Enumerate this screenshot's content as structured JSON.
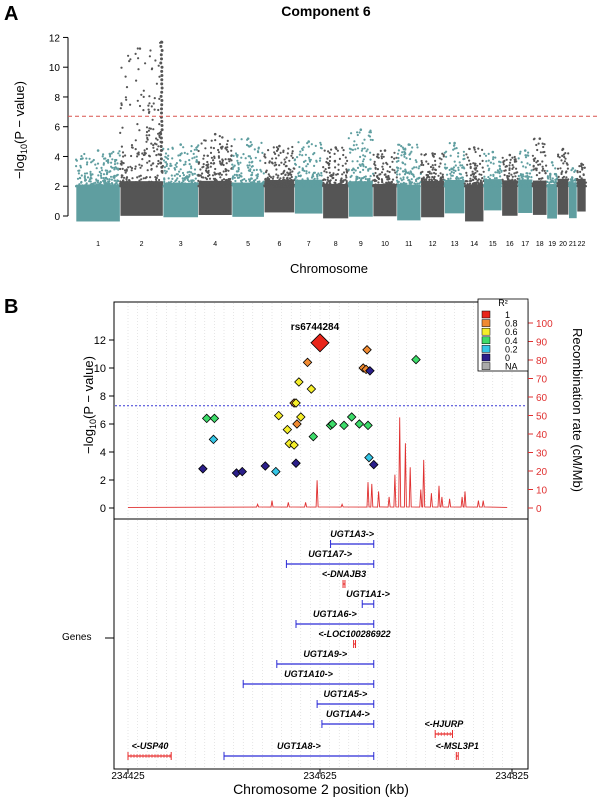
{
  "chart_data": [
    {
      "panel": "A",
      "type": "scatter",
      "subtype": "manhattan",
      "title": "Component 6",
      "ylabel": "−log10(P − value)",
      "xlabel": "Chromosome",
      "ylim": [
        0,
        12.5
      ],
      "y_ticks": [
        0,
        2,
        4,
        6,
        8,
        10,
        12
      ],
      "threshold": 6.7,
      "threshold_style": "dashed",
      "colors": {
        "odd": "#5f9ea0",
        "even": "#555555",
        "threshold": "#d9534f"
      },
      "chromosomes": [
        {
          "label": "1",
          "start": 0.0,
          "end": 248.9,
          "max": 4.4
        },
        {
          "label": "2",
          "start": 248.9,
          "end": 491.1,
          "max": 11.7,
          "peak_at": 0.96
        },
        {
          "label": "3",
          "start": 491.1,
          "end": 689.4,
          "max": 4.8
        },
        {
          "label": "4",
          "start": 689.4,
          "end": 879.6,
          "max": 5.5
        },
        {
          "label": "5",
          "start": 879.6,
          "end": 1061.1,
          "max": 5.2
        },
        {
          "label": "6",
          "start": 1061.1,
          "end": 1231.9,
          "max": 4.7
        },
        {
          "label": "7",
          "start": 1231.9,
          "end": 1391.2,
          "max": 5.0
        },
        {
          "label": "8",
          "start": 1391.2,
          "end": 1536.3,
          "max": 4.6
        },
        {
          "label": "9",
          "start": 1536.3,
          "end": 1674.7,
          "max": 5.8
        },
        {
          "label": "10",
          "start": 1674.7,
          "end": 1808.5,
          "max": 4.4
        },
        {
          "label": "11",
          "start": 1808.5,
          "end": 1943.6,
          "max": 4.8
        },
        {
          "label": "12",
          "start": 1943.6,
          "end": 2076.9,
          "max": 4.2
        },
        {
          "label": "13",
          "start": 2076.9,
          "end": 2191.3,
          "max": 4.9
        },
        {
          "label": "14",
          "start": 2191.3,
          "end": 2298.3,
          "max": 4.6
        },
        {
          "label": "15",
          "start": 2298.3,
          "end": 2400.3,
          "max": 4.3
        },
        {
          "label": "16",
          "start": 2400.3,
          "end": 2490.6,
          "max": 4.1
        },
        {
          "label": "17",
          "start": 2490.6,
          "end": 2573.9,
          "max": 4.4
        },
        {
          "label": "18",
          "start": 2573.9,
          "end": 2654.2,
          "max": 5.2
        },
        {
          "label": "19",
          "start": 2654.2,
          "end": 2712.8,
          "max": 3.6
        },
        {
          "label": "20",
          "start": 2712.8,
          "end": 2777.2,
          "max": 4.5
        },
        {
          "label": "21",
          "start": 2777.2,
          "end": 2823.9,
          "max": 3.2
        },
        {
          "label": "22",
          "start": 2823.9,
          "end": 2874.7,
          "max": 3.5
        }
      ]
    },
    {
      "panel": "B",
      "type": "scatter",
      "subtype": "regional-association",
      "ylabel_left": "−log10(P − value)",
      "ylabel_right": "Recombination rate (cM/Mb)",
      "xlabel": "Chromosome 2 position (kb)",
      "xlim": [
        234425,
        234825
      ],
      "x_ticks": [
        234425,
        234625,
        234825
      ],
      "ylim": [
        0,
        14
      ],
      "y_ticks": [
        0,
        2,
        4,
        6,
        8,
        10,
        12
      ],
      "y2lim": [
        0,
        112
      ],
      "y2_ticks": [
        0,
        10,
        20,
        30,
        40,
        50,
        60,
        70,
        80,
        90,
        100
      ],
      "threshold": 7.3,
      "lead_snp": {
        "label": "rs6744284",
        "x": 234625,
        "y": 11.8
      },
      "legend": {
        "title": "R²",
        "position": "top-right",
        "entries": [
          {
            "label": "1",
            "color": "#e8251a"
          },
          {
            "label": "0.8",
            "color": "#f08a32"
          },
          {
            "label": "0.6",
            "color": "#f5ee2a"
          },
          {
            "label": "0.4",
            "color": "#3ddc6a"
          },
          {
            "label": "0.2",
            "color": "#35c6e6"
          },
          {
            "label": "0",
            "color": "#2b1f8a"
          },
          {
            "label": "NA",
            "color": "#aaaaaa"
          }
        ]
      },
      "ld_colors": {
        "1": "#e8251a",
        "0.8": "#f08a32",
        "0.6": "#f5ee2a",
        "0.4": "#3ddc6a",
        "0.2": "#35c6e6",
        "0": "#2b1f8a"
      },
      "points": [
        {
          "x": 234625,
          "y": 11.8,
          "ld": "1"
        },
        {
          "x": 234612,
          "y": 10.4,
          "ld": "0.8"
        },
        {
          "x": 234674,
          "y": 11.3,
          "ld": "0.8"
        },
        {
          "x": 234670,
          "y": 10.0,
          "ld": "0.8"
        },
        {
          "x": 234673,
          "y": 9.9,
          "ld": "0.8"
        },
        {
          "x": 234598,
          "y": 7.5,
          "ld": "0.8"
        },
        {
          "x": 234601,
          "y": 6.0,
          "ld": "0.8"
        },
        {
          "x": 234677,
          "y": 9.8,
          "ld": "0"
        },
        {
          "x": 234603,
          "y": 9.0,
          "ld": "0.6"
        },
        {
          "x": 234616,
          "y": 8.5,
          "ld": "0.6"
        },
        {
          "x": 234582,
          "y": 6.6,
          "ld": "0.6"
        },
        {
          "x": 234600,
          "y": 7.5,
          "ld": "0.6"
        },
        {
          "x": 234605,
          "y": 6.5,
          "ld": "0.6"
        },
        {
          "x": 234591,
          "y": 5.6,
          "ld": "0.6"
        },
        {
          "x": 234593,
          "y": 4.6,
          "ld": "0.6"
        },
        {
          "x": 234598,
          "y": 4.5,
          "ld": "0.6"
        },
        {
          "x": 234725,
          "y": 10.6,
          "ld": "0.4"
        },
        {
          "x": 234507,
          "y": 6.4,
          "ld": "0.4"
        },
        {
          "x": 234515,
          "y": 6.4,
          "ld": "0.4"
        },
        {
          "x": 234618,
          "y": 5.1,
          "ld": "0.4"
        },
        {
          "x": 234636,
          "y": 5.9,
          "ld": "0.4"
        },
        {
          "x": 234638,
          "y": 6.0,
          "ld": "0.4"
        },
        {
          "x": 234650,
          "y": 5.9,
          "ld": "0.4"
        },
        {
          "x": 234658,
          "y": 6.5,
          "ld": "0.4"
        },
        {
          "x": 234666,
          "y": 6.0,
          "ld": "0.4"
        },
        {
          "x": 234675,
          "y": 5.9,
          "ld": "0.4"
        },
        {
          "x": 234514,
          "y": 4.9,
          "ld": "0.2"
        },
        {
          "x": 234579,
          "y": 2.6,
          "ld": "0.2"
        },
        {
          "x": 234676,
          "y": 3.6,
          "ld": "0.2"
        },
        {
          "x": 234503,
          "y": 2.8,
          "ld": "0"
        },
        {
          "x": 234538,
          "y": 2.5,
          "ld": "0"
        },
        {
          "x": 234544,
          "y": 2.6,
          "ld": "0"
        },
        {
          "x": 234568,
          "y": 3.0,
          "ld": "0"
        },
        {
          "x": 234600,
          "y": 3.2,
          "ld": "0"
        },
        {
          "x": 234681,
          "y": 3.1,
          "ld": "0"
        }
      ],
      "recomb_spikes": [
        {
          "x": 234622,
          "rate": 15
        },
        {
          "x": 234675,
          "rate": 14
        },
        {
          "x": 234679,
          "rate": 13
        },
        {
          "x": 234686,
          "rate": 9
        },
        {
          "x": 234697,
          "rate": 6
        },
        {
          "x": 234703,
          "rate": 18
        },
        {
          "x": 234708,
          "rate": 49
        },
        {
          "x": 234714,
          "rate": 35
        },
        {
          "x": 234719,
          "rate": 22
        },
        {
          "x": 234730,
          "rate": 10
        },
        {
          "x": 234733,
          "rate": 26
        },
        {
          "x": 234741,
          "rate": 8
        },
        {
          "x": 234749,
          "rate": 12
        },
        {
          "x": 234752,
          "rate": 6
        },
        {
          "x": 234760,
          "rate": 5
        },
        {
          "x": 234773,
          "rate": 6
        },
        {
          "x": 234776,
          "rate": 9
        },
        {
          "x": 234790,
          "rate": 4
        },
        {
          "x": 234795,
          "rate": 4
        },
        {
          "x": 234592,
          "rate": 3
        },
        {
          "x": 234560,
          "rate": 2
        },
        {
          "x": 234575,
          "rate": 4
        },
        {
          "x": 234610,
          "rate": 3
        },
        {
          "x": 234648,
          "rate": 2
        }
      ],
      "genes_label": "Genes",
      "genes": [
        {
          "label": "UGT1A3->",
          "start": 234636,
          "end": 234681,
          "row": 0,
          "color": "#2b2bd6"
        },
        {
          "label": "UGT1A7->",
          "start": 234590,
          "end": 234681,
          "row": 1,
          "color": "#2b2bd6"
        },
        {
          "label": "<-DNAJB3",
          "start": 234649,
          "end": 234651,
          "row": 2,
          "color": "#e82b2b"
        },
        {
          "label": "UGT1A1->",
          "start": 234669,
          "end": 234681,
          "row": 3,
          "color": "#2b2bd6"
        },
        {
          "label": "UGT1A6->",
          "start": 234600,
          "end": 234681,
          "row": 4,
          "color": "#2b2bd6"
        },
        {
          "label": "<-LOC100286922",
          "start": 234660,
          "end": 234662,
          "row": 5,
          "color": "#e82b2b"
        },
        {
          "label": "UGT1A9->",
          "start": 234580,
          "end": 234681,
          "row": 6,
          "color": "#2b2bd6"
        },
        {
          "label": "UGT1A10->",
          "start": 234545,
          "end": 234681,
          "row": 7,
          "color": "#2b2bd6"
        },
        {
          "label": "UGT1A5->",
          "start": 234622,
          "end": 234681,
          "row": 8,
          "color": "#2b2bd6"
        },
        {
          "label": "UGT1A4->",
          "start": 234627,
          "end": 234681,
          "row": 9,
          "color": "#2b2bd6"
        },
        {
          "label": "<-HJURP",
          "start": 234745,
          "end": 234763,
          "row": 9.5,
          "color": "#e82b2b"
        },
        {
          "label": "<-USP40",
          "start": 234425,
          "end": 234470,
          "row": 10.6,
          "color": "#e82b2b"
        },
        {
          "label": "UGT1A8->",
          "start": 234525,
          "end": 234681,
          "row": 10.6,
          "color": "#2b2bd6"
        },
        {
          "label": "<-MSL3P1",
          "start": 234767,
          "end": 234769,
          "row": 10.6,
          "color": "#e82b2b"
        }
      ]
    }
  ]
}
